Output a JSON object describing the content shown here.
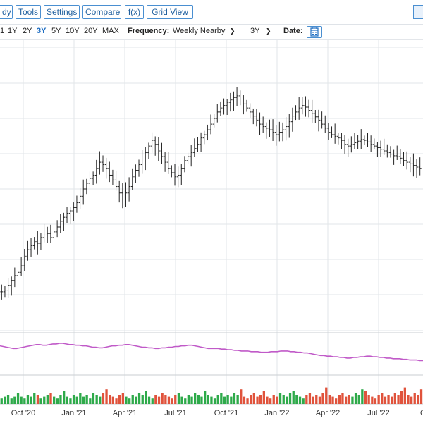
{
  "toolbar": {
    "buttons": [
      {
        "label": "dy"
      },
      {
        "label": "Tools"
      },
      {
        "label": "Settings"
      },
      {
        "label": "Compare"
      },
      {
        "label": "f(x)"
      },
      {
        "label": "Grid View"
      }
    ]
  },
  "rangebar": {
    "ranges": [
      "1",
      "1Y",
      "2Y",
      "3Y",
      "5Y",
      "10Y",
      "20Y",
      "MAX"
    ],
    "active_range": "3Y",
    "frequency_label": "Frequency:",
    "frequency_value": "Weekly Nearby",
    "period_value": "3Y",
    "date_label": "Date:"
  },
  "colors": {
    "grid": "#e2e5e9",
    "bars": "#222222",
    "indicator": "#c05ac8",
    "volume_up": "#2eaa4a",
    "volume_down": "#e0533c",
    "accent": "#1f6ec2"
  },
  "chart_data": {
    "type": "ohlc",
    "title": "",
    "xlabel": "",
    "ylabel": "",
    "x_tick_labels": [
      "Oct '20",
      "Jan '21",
      "Apr '21",
      "Jul '21",
      "Oct '21",
      "Jan '22",
      "Apr '22",
      "Jul '22",
      "O"
    ],
    "grid": true,
    "price_series_weekly_close": [
      348,
      350,
      356,
      362,
      368,
      372,
      380,
      392,
      400,
      405,
      410,
      408,
      415,
      418,
      420,
      415,
      422,
      428,
      435,
      440,
      445,
      448,
      452,
      458,
      466,
      475,
      482,
      488,
      492,
      500,
      508,
      505,
      500,
      492,
      486,
      478,
      470,
      465,
      470,
      478,
      490,
      498,
      505,
      512,
      520,
      528,
      535,
      530,
      522,
      515,
      508,
      500,
      495,
      490,
      492,
      500,
      510,
      515,
      520,
      525,
      530,
      538,
      542,
      548,
      555,
      562,
      570,
      575,
      578,
      582,
      585,
      588,
      590,
      586,
      580,
      575,
      570,
      565,
      560,
      555,
      552,
      550,
      548,
      545,
      542,
      545,
      548,
      552,
      558,
      565,
      570,
      575,
      578,
      576,
      572,
      568,
      564,
      560,
      555,
      550,
      545,
      542,
      540,
      538,
      535,
      530,
      528,
      530,
      532,
      534,
      536,
      535,
      533,
      530,
      528,
      526,
      524,
      522,
      520,
      518,
      516,
      515,
      513,
      510,
      508,
      506,
      504,
      502,
      500
    ],
    "indicator_series": [
      0.7,
      0.69,
      0.68,
      0.67,
      0.66,
      0.66,
      0.67,
      0.68,
      0.69,
      0.7,
      0.71,
      0.72,
      0.72,
      0.71,
      0.71,
      0.72,
      0.73,
      0.73,
      0.74,
      0.74,
      0.73,
      0.72,
      0.72,
      0.71,
      0.71,
      0.7,
      0.7,
      0.69,
      0.68,
      0.68,
      0.67,
      0.67,
      0.68,
      0.69,
      0.7,
      0.7,
      0.71,
      0.71,
      0.72,
      0.72,
      0.71,
      0.7,
      0.69,
      0.68,
      0.68,
      0.67,
      0.67,
      0.66,
      0.66,
      0.67,
      0.67,
      0.68,
      0.68,
      0.69,
      0.69,
      0.7,
      0.7,
      0.71,
      0.71,
      0.7,
      0.69,
      0.68,
      0.67,
      0.66,
      0.66,
      0.66,
      0.66,
      0.65,
      0.65,
      0.64,
      0.64,
      0.63,
      0.63,
      0.62,
      0.62,
      0.62,
      0.61,
      0.61,
      0.61,
      0.6,
      0.6,
      0.6,
      0.61,
      0.61,
      0.61,
      0.62,
      0.62,
      0.62,
      0.61,
      0.61,
      0.6,
      0.6,
      0.59,
      0.59,
      0.58,
      0.57,
      0.56,
      0.55,
      0.55,
      0.54,
      0.54,
      0.53,
      0.53,
      0.52,
      0.52,
      0.51,
      0.51,
      0.52,
      0.52,
      0.53,
      0.53,
      0.54,
      0.54,
      0.53,
      0.53,
      0.52,
      0.52,
      0.51,
      0.51,
      0.5,
      0.5,
      0.5,
      0.49,
      0.49,
      0.48,
      0.48,
      0.48,
      0.47,
      0.47
    ],
    "volume_series": [
      0.3,
      0.4,
      0.5,
      0.3,
      0.4,
      0.6,
      0.4,
      0.3,
      0.5,
      0.4,
      0.6,
      0.5,
      0.3,
      0.4,
      0.5,
      0.6,
      0.4,
      0.3,
      0.5,
      0.7,
      0.4,
      0.3,
      0.5,
      0.4,
      0.6,
      0.4,
      0.5,
      0.3,
      0.6,
      0.5,
      0.4,
      0.6,
      0.8,
      0.5,
      0.4,
      0.3,
      0.5,
      0.6,
      0.4,
      0.3,
      0.5,
      0.4,
      0.6,
      0.5,
      0.7,
      0.4,
      0.3,
      0.5,
      0.4,
      0.6,
      0.5,
      0.4,
      0.3,
      0.5,
      0.6,
      0.4,
      0.3,
      0.5,
      0.4,
      0.6,
      0.5,
      0.4,
      0.7,
      0.5,
      0.4,
      0.3,
      0.5,
      0.6,
      0.4,
      0.5,
      0.4,
      0.6,
      0.5,
      0.8,
      0.4,
      0.3,
      0.5,
      0.6,
      0.4,
      0.5,
      0.7,
      0.4,
      0.3,
      0.5,
      0.4,
      0.6,
      0.5,
      0.4,
      0.6,
      0.7,
      0.5,
      0.4,
      0.3,
      0.5,
      0.6,
      0.4,
      0.5,
      0.4,
      0.6,
      0.9,
      0.5,
      0.4,
      0.3,
      0.5,
      0.6,
      0.4,
      0.5,
      0.4,
      0.6,
      0.5,
      0.8,
      0.7,
      0.5,
      0.4,
      0.3,
      0.5,
      0.6,
      0.4,
      0.5,
      0.4,
      0.6,
      0.5,
      0.7,
      0.9,
      0.5,
      0.4,
      0.6,
      0.5,
      0.8
    ]
  }
}
